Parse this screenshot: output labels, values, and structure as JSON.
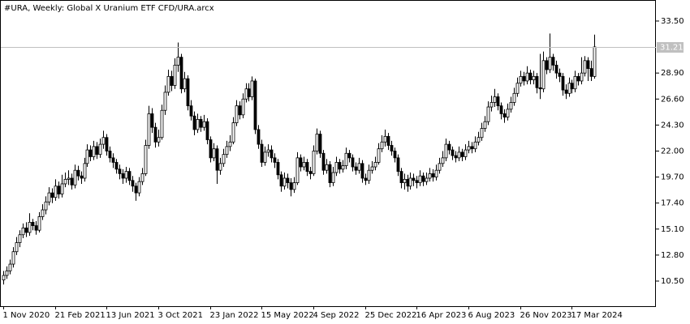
{
  "chart_data": {
    "type": "candlestick",
    "title": "#URA, Weekly:  Global X Uranium ETF CFD/URA.arcx",
    "categories": [
      "1 Nov 2020",
      null,
      null,
      null,
      null,
      null,
      null,
      null,
      null,
      null,
      null,
      null,
      null,
      null,
      null,
      null,
      "21 Feb 2021",
      null,
      null,
      null,
      null,
      null,
      null,
      null,
      null,
      null,
      null,
      null,
      null,
      null,
      null,
      null,
      "13 Jun 2021",
      null,
      null,
      null,
      null,
      null,
      null,
      null,
      null,
      null,
      null,
      null,
      null,
      null,
      null,
      null,
      "3 Oct 2021",
      null,
      null,
      null,
      null,
      null,
      null,
      null,
      null,
      null,
      null,
      null,
      null,
      null,
      null,
      null,
      "23 Jan 2022",
      null,
      null,
      null,
      null,
      null,
      null,
      null,
      null,
      null,
      null,
      null,
      null,
      null,
      null,
      null,
      "15 May 2022",
      null,
      null,
      null,
      null,
      null,
      null,
      null,
      null,
      null,
      null,
      null,
      null,
      null,
      null,
      null,
      "4 Sep 2022",
      null,
      null,
      null,
      null,
      null,
      null,
      null,
      null,
      null,
      null,
      null,
      null,
      null,
      null,
      null,
      "25 Dec 2022",
      null,
      null,
      null,
      null,
      null,
      null,
      null,
      null,
      null,
      null,
      null,
      null,
      null,
      null,
      null,
      "16 Apr 2023",
      null,
      null,
      null,
      null,
      null,
      null,
      null,
      null,
      null,
      null,
      null,
      null,
      null,
      null,
      null,
      "6 Aug 2023",
      null,
      null,
      null,
      null,
      null,
      null,
      null,
      null,
      null,
      null,
      null,
      null,
      null,
      null,
      null,
      "26 Nov 2023",
      null,
      null,
      null,
      null,
      null,
      null,
      null,
      null,
      null,
      null,
      null,
      null,
      null,
      null,
      null,
      "17 Mar 2024",
      null,
      null,
      null,
      null,
      null,
      null,
      null
    ],
    "open": [
      10.6,
      11.0,
      11.4,
      12.0,
      13.1,
      13.9,
      14.6,
      15.2,
      14.8,
      15.7,
      15.4,
      15.0,
      16.2,
      16.8,
      17.5,
      18.3,
      17.9,
      18.9,
      18.2,
      19.1,
      19.5,
      19.6,
      19.0,
      20.3,
      19.8,
      19.6,
      20.9,
      22.1,
      21.5,
      22.4,
      21.7,
      22.6,
      23.2,
      22.0,
      21.4,
      21.0,
      20.4,
      20.0,
      19.6,
      20.2,
      19.4,
      18.9,
      18.3,
      19.3,
      20.0,
      22.5,
      25.3,
      24.1,
      22.8,
      23.2,
      25.6,
      27.2,
      28.6,
      27.8,
      29.6,
      30.3,
      27.5,
      28.4,
      26.0,
      25.1,
      23.9,
      24.8,
      24.1,
      24.6,
      23.0,
      21.4,
      22.2,
      20.3,
      20.9,
      21.7,
      22.4,
      22.8,
      24.5,
      26.0,
      25.2,
      26.6,
      27.5,
      26.8,
      28.2,
      23.9,
      22.6,
      21.0,
      21.9,
      22.1,
      21.4,
      21.0,
      19.9,
      18.9,
      19.6,
      19.2,
      18.6,
      19.2,
      21.4,
      20.6,
      21.0,
      20.2,
      20.0,
      22.0,
      23.5,
      21.8,
      20.3,
      20.8,
      19.2,
      20.1,
      21.0,
      20.4,
      20.7,
      21.8,
      21.4,
      20.6,
      20.3,
      20.9,
      19.6,
      19.4,
      20.3,
      20.6,
      21.0,
      22.2,
      22.8,
      23.3,
      22.5,
      22.0,
      21.4,
      20.2,
      19.2,
      19.5,
      18.9,
      19.6,
      19.4,
      19.2,
      19.8,
      19.3,
      19.6,
      20.0,
      19.7,
      20.3,
      20.9,
      21.4,
      22.6,
      22.1,
      21.6,
      21.4,
      21.9,
      21.5,
      22.1,
      22.4,
      22.2,
      22.8,
      23.2,
      24.0,
      24.6,
      25.9,
      26.3,
      26.8,
      26.0,
      25.3,
      25.0,
      25.7,
      26.3,
      27.1,
      28.0,
      28.6,
      28.2,
      28.9,
      28.3,
      28.6,
      27.6,
      27.5,
      30.0,
      29.2,
      30.3,
      29.6,
      28.9,
      28.6,
      27.4,
      27.1,
      28.0,
      27.5,
      28.6,
      28.2,
      28.9,
      30.0,
      29.3,
      28.6
    ],
    "high": [
      11.4,
      11.8,
      12.4,
      13.5,
      14.4,
      15.0,
      15.6,
      15.7,
      16.5,
      16.0,
      15.8,
      16.6,
      17.3,
      18.0,
      18.8,
      18.7,
      19.5,
      19.3,
      19.9,
      20.1,
      20.3,
      20.0,
      20.8,
      20.7,
      20.2,
      21.4,
      22.6,
      22.5,
      22.9,
      22.8,
      23.1,
      23.8,
      23.5,
      22.4,
      21.8,
      21.3,
      20.8,
      20.4,
      20.6,
      20.5,
      19.8,
      19.2,
      19.7,
      20.5,
      23.0,
      26.0,
      25.8,
      24.5,
      23.9,
      26.1,
      27.8,
      29.2,
      29.1,
      30.2,
      31.6,
      30.6,
      29.0,
      28.7,
      26.5,
      25.5,
      25.3,
      25.1,
      25.2,
      24.9,
      23.3,
      22.7,
      22.5,
      21.4,
      22.2,
      22.9,
      23.4,
      25.0,
      26.5,
      26.4,
      27.1,
      28.0,
      28.0,
      28.6,
      28.4,
      24.3,
      23.0,
      22.4,
      22.6,
      22.5,
      21.8,
      21.3,
      20.2,
      20.1,
      20.0,
      19.6,
      19.7,
      21.9,
      21.7,
      21.5,
      21.3,
      20.6,
      22.5,
      24.0,
      23.8,
      22.1,
      21.3,
      21.1,
      20.6,
      21.5,
      21.3,
      21.2,
      22.3,
      22.1,
      21.7,
      21.0,
      21.4,
      21.2,
      20.0,
      20.8,
      21.1,
      21.5,
      22.7,
      23.4,
      23.9,
      23.6,
      22.9,
      22.3,
      21.7,
      20.5,
      20.0,
      19.9,
      20.1,
      20.0,
      19.8,
      20.3,
      20.1,
      20.1,
      20.5,
      20.4,
      20.8,
      21.4,
      22.0,
      23.1,
      22.9,
      22.4,
      22.0,
      22.4,
      22.2,
      22.6,
      22.9,
      22.8,
      23.3,
      23.7,
      24.5,
      25.1,
      26.4,
      26.9,
      27.5,
      27.1,
      26.3,
      25.7,
      26.2,
      26.8,
      27.6,
      28.5,
      29.1,
      29.0,
      29.5,
      29.2,
      29.1,
      28.9,
      30.6,
      30.8,
      30.3,
      32.4,
      30.6,
      30.0,
      29.3,
      28.9,
      27.9,
      28.5,
      28.3,
      29.1,
      28.9,
      30.3,
      30.4,
      30.3,
      30.0,
      32.3
    ],
    "low": [
      10.2,
      10.7,
      11.1,
      11.7,
      12.8,
      13.5,
      14.3,
      14.4,
      14.5,
      15.0,
      14.6,
      14.8,
      15.9,
      16.4,
      17.2,
      17.4,
      17.6,
      17.8,
      17.9,
      18.8,
      19.0,
      18.6,
      18.7,
      19.4,
      19.1,
      19.3,
      20.6,
      21.1,
      21.2,
      21.3,
      21.4,
      22.2,
      21.6,
      21.0,
      20.5,
      20.0,
      19.5,
      19.1,
      19.2,
      19.0,
      18.4,
      17.6,
      18.0,
      19.0,
      19.8,
      22.2,
      23.6,
      22.3,
      22.4,
      23.0,
      25.2,
      26.9,
      27.3,
      27.5,
      29.0,
      27.1,
      27.2,
      25.6,
      24.7,
      23.4,
      23.6,
      23.7,
      23.8,
      22.6,
      21.0,
      21.1,
      19.1,
      19.9,
      20.6,
      21.4,
      22.0,
      22.6,
      24.2,
      24.8,
      24.9,
      26.3,
      26.4,
      26.5,
      23.5,
      22.2,
      20.6,
      20.7,
      21.5,
      21.0,
      20.5,
      19.5,
      18.4,
      18.6,
      18.7,
      18.0,
      18.3,
      19.0,
      20.2,
      20.3,
      19.8,
      19.5,
      19.8,
      21.7,
      21.4,
      19.9,
      20.0,
      18.8,
      18.9,
      19.8,
      20.0,
      20.1,
      20.4,
      21.0,
      20.2,
      19.9,
      20.0,
      19.2,
      19.0,
      19.1,
      20.0,
      20.3,
      20.8,
      21.9,
      22.4,
      22.1,
      21.6,
      21.0,
      19.8,
      18.7,
      18.6,
      18.4,
      18.6,
      18.9,
      18.7,
      18.9,
      18.9,
      19.0,
      19.3,
      19.3,
      19.4,
      20.0,
      20.6,
      21.1,
      21.7,
      21.2,
      21.0,
      21.1,
      21.1,
      21.2,
      21.8,
      21.8,
      21.9,
      22.5,
      22.9,
      23.7,
      24.3,
      25.5,
      25.9,
      25.6,
      24.8,
      24.5,
      24.7,
      25.4,
      26.0,
      26.8,
      27.7,
      27.8,
      27.9,
      27.9,
      27.9,
      27.1,
      26.6,
      27.2,
      28.8,
      28.9,
      29.1,
      28.4,
      28.1,
      26.9,
      26.6,
      26.8,
      27.1,
      27.2,
      27.8,
      27.9,
      28.6,
      28.2,
      28.2,
      28.4
    ],
    "close": [
      11.0,
      11.4,
      12.0,
      13.1,
      13.9,
      14.6,
      15.2,
      14.8,
      15.7,
      15.4,
      15.0,
      16.2,
      16.8,
      17.5,
      18.3,
      17.9,
      18.9,
      18.2,
      19.1,
      19.5,
      19.6,
      19.0,
      20.3,
      19.8,
      19.6,
      20.9,
      22.1,
      21.5,
      22.4,
      21.7,
      22.6,
      23.2,
      22.0,
      21.4,
      21.0,
      20.4,
      20.0,
      19.6,
      20.2,
      19.4,
      18.9,
      18.3,
      19.3,
      20.0,
      22.5,
      25.3,
      24.1,
      22.8,
      23.2,
      25.6,
      27.2,
      28.6,
      27.8,
      29.6,
      30.3,
      27.5,
      28.4,
      26.0,
      25.1,
      23.9,
      24.8,
      24.1,
      24.6,
      23.0,
      21.4,
      22.2,
      20.3,
      20.9,
      21.7,
      22.4,
      22.8,
      24.5,
      26.0,
      25.2,
      26.6,
      27.5,
      26.8,
      28.2,
      23.9,
      22.6,
      21.0,
      21.9,
      22.1,
      21.4,
      21.0,
      19.9,
      18.9,
      19.6,
      19.2,
      18.6,
      19.2,
      21.4,
      20.6,
      21.0,
      20.2,
      20.0,
      22.0,
      23.5,
      21.8,
      20.3,
      20.8,
      19.2,
      20.1,
      21.0,
      20.4,
      20.7,
      21.8,
      21.4,
      20.6,
      20.3,
      20.9,
      19.6,
      19.4,
      20.3,
      20.6,
      21.0,
      22.2,
      22.8,
      23.3,
      22.5,
      22.0,
      21.4,
      20.2,
      19.2,
      19.5,
      18.9,
      19.6,
      19.4,
      19.2,
      19.8,
      19.3,
      19.6,
      20.0,
      19.7,
      20.3,
      20.9,
      21.4,
      22.6,
      22.1,
      21.6,
      21.4,
      21.9,
      21.5,
      22.1,
      22.4,
      22.2,
      22.8,
      23.2,
      24.0,
      24.6,
      25.9,
      26.3,
      26.8,
      26.0,
      25.3,
      25.0,
      25.7,
      26.3,
      27.1,
      28.0,
      28.6,
      28.2,
      28.9,
      28.3,
      28.6,
      27.6,
      27.5,
      30.0,
      29.2,
      30.3,
      29.6,
      28.9,
      28.6,
      27.4,
      27.1,
      28.0,
      27.5,
      28.6,
      28.2,
      28.9,
      30.0,
      29.3,
      28.6,
      31.21
    ],
    "ylim": [
      8.28,
      35.36
    ],
    "yticks": [
      {
        "value": 10.5,
        "label": "10.50"
      },
      {
        "value": 12.8,
        "label": "12.80"
      },
      {
        "value": 15.1,
        "label": "15.10"
      },
      {
        "value": 17.4,
        "label": "17.40"
      },
      {
        "value": 19.7,
        "label": "19.70"
      },
      {
        "value": 22.0,
        "label": "22.00"
      },
      {
        "value": 24.3,
        "label": "24.30"
      },
      {
        "value": 26.6,
        "label": "26.60"
      },
      {
        "value": 28.9,
        "label": "28.90"
      },
      {
        "value": 33.5,
        "label": "33.50"
      }
    ],
    "up_color": "#ffffff",
    "down_color": "#000000"
  }
}
